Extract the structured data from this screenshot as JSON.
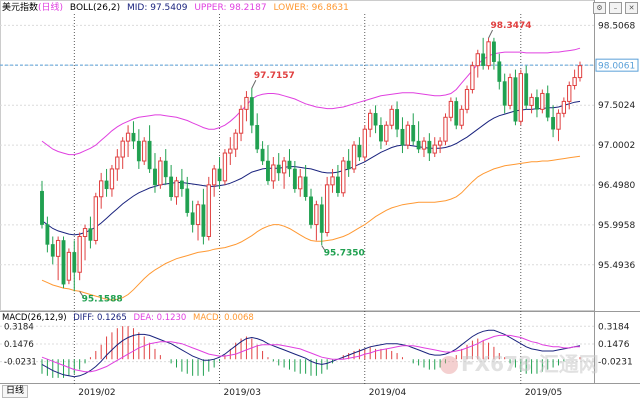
{
  "header": {
    "title": "美元指数",
    "period": "(日线)",
    "indicator": "BOLL(26,2)",
    "mid": "MID: 97.5409",
    "upper": "UPPER: 98.2187",
    "lower": "LOWER: 96.8631"
  },
  "macd_header": {
    "name": "MACD(26,12,9)",
    "diff": "DIFF: 0.1265",
    "dea": "DEA: 0.1230",
    "macd": "MACD: 0.0068"
  },
  "period_button": "日线",
  "watermark": "FX678 汇通网",
  "colors": {
    "up": "#e04040",
    "down": "#20a050",
    "mid": "#1a237e",
    "upper": "#e040e0",
    "lower": "#ff9933",
    "diff": "#1a237e",
    "dea": "#e040e0",
    "current": "#5aa0d8",
    "grid": "#dcdcdc",
    "vgrid": "#333333"
  },
  "chart_data": {
    "type": "candlestick",
    "price_axis": {
      "ticks": [
        98.5068,
        98.0046,
        97.5024,
        97.0002,
        96.498,
        95.9958,
        95.4936
      ],
      "tick_labels": [
        "98.5068",
        "98.0046",
        "97.5024",
        "97.0002",
        "96.4980",
        "95.9958",
        "95.4936"
      ],
      "ylim": [
        94.95,
        98.65
      ]
    },
    "macd_axis": {
      "ticks": [
        0.3184,
        0.1476,
        -0.0231
      ],
      "tick_labels": [
        "0.3184",
        "0.1476",
        "-0.0231"
      ],
      "ylim": [
        -0.22,
        0.36
      ]
    },
    "x_labels": [
      "2019/02",
      "2019/03",
      "2019/04",
      "2019/05"
    ],
    "x_label_index": [
      6,
      33,
      60,
      89
    ],
    "current_price": 98.0061,
    "current_price_label": "98.0061",
    "annotations": [
      {
        "index": 83,
        "price": 98.3474,
        "label": "98.3474",
        "pos": "high"
      },
      {
        "index": 39,
        "price": 97.7157,
        "label": "97.7157",
        "pos": "high"
      },
      {
        "index": 52,
        "price": 95.735,
        "label": "95.7350",
        "pos": "low"
      },
      {
        "index": 7,
        "price": 95.1588,
        "label": "95.1588",
        "pos": "low"
      }
    ],
    "candles": [
      [
        96.42,
        96.55,
        95.95,
        96.0
      ],
      [
        96.0,
        96.1,
        95.65,
        95.75
      ],
      [
        95.75,
        95.85,
        95.5,
        95.6
      ],
      [
        95.6,
        95.85,
        95.3,
        95.8
      ],
      [
        95.8,
        95.85,
        95.2,
        95.25
      ],
      [
        95.3,
        95.7,
        95.25,
        95.65
      ],
      [
        95.65,
        95.8,
        95.16,
        95.4
      ],
      [
        95.4,
        95.9,
        95.3,
        95.85
      ],
      [
        95.85,
        96.0,
        95.55,
        95.95
      ],
      [
        95.95,
        96.1,
        95.7,
        95.8
      ],
      [
        95.8,
        96.4,
        95.75,
        96.35
      ],
      [
        96.35,
        96.65,
        96.2,
        96.55
      ],
      [
        96.55,
        96.7,
        96.35,
        96.45
      ],
      [
        96.45,
        96.75,
        96.35,
        96.7
      ],
      [
        96.7,
        96.95,
        96.55,
        96.85
      ],
      [
        96.85,
        97.1,
        96.7,
        97.05
      ],
      [
        97.05,
        97.25,
        96.85,
        97.15
      ],
      [
        97.15,
        97.3,
        96.95,
        97.05
      ],
      [
        97.05,
        97.2,
        96.7,
        96.8
      ],
      [
        96.8,
        97.1,
        96.75,
        97.05
      ],
      [
        97.05,
        97.25,
        96.65,
        96.7
      ],
      [
        96.7,
        96.9,
        96.4,
        96.5
      ],
      [
        96.5,
        96.85,
        96.45,
        96.8
      ],
      [
        96.8,
        96.95,
        96.5,
        96.6
      ],
      [
        96.6,
        96.75,
        96.3,
        96.35
      ],
      [
        96.35,
        96.6,
        96.25,
        96.55
      ],
      [
        96.55,
        96.7,
        96.35,
        96.45
      ],
      [
        96.45,
        96.6,
        96.1,
        96.15
      ],
      [
        96.15,
        96.3,
        95.9,
        96.0
      ],
      [
        96.0,
        96.3,
        95.8,
        96.25
      ],
      [
        96.25,
        96.45,
        95.75,
        95.85
      ],
      [
        95.85,
        96.6,
        95.8,
        96.5
      ],
      [
        96.5,
        96.75,
        96.35,
        96.7
      ],
      [
        96.7,
        96.85,
        96.45,
        96.55
      ],
      [
        96.55,
        96.95,
        96.5,
        96.9
      ],
      [
        96.9,
        97.1,
        96.75,
        96.95
      ],
      [
        96.95,
        97.2,
        96.85,
        97.15
      ],
      [
        97.15,
        97.5,
        97.05,
        97.45
      ],
      [
        97.45,
        97.68,
        97.3,
        97.6
      ],
      [
        97.6,
        97.72,
        97.15,
        97.25
      ],
      [
        97.25,
        97.4,
        96.9,
        96.95
      ],
      [
        96.95,
        97.05,
        96.75,
        96.8
      ],
      [
        96.8,
        97.0,
        96.5,
        96.55
      ],
      [
        96.55,
        96.85,
        96.45,
        96.75
      ],
      [
        96.75,
        96.9,
        96.55,
        96.65
      ],
      [
        96.65,
        96.85,
        96.45,
        96.8
      ],
      [
        96.8,
        96.95,
        96.6,
        96.7
      ],
      [
        96.7,
        96.8,
        96.4,
        96.45
      ],
      [
        96.45,
        96.7,
        96.35,
        96.6
      ],
      [
        96.6,
        96.75,
        96.3,
        96.35
      ],
      [
        96.35,
        96.45,
        95.95,
        96.0
      ],
      [
        96.0,
        96.3,
        95.8,
        96.25
      ],
      [
        96.25,
        96.35,
        95.74,
        95.9
      ],
      [
        95.9,
        96.6,
        95.85,
        96.5
      ],
      [
        96.5,
        96.7,
        96.4,
        96.6
      ],
      [
        96.6,
        96.75,
        96.35,
        96.4
      ],
      [
        96.4,
        96.85,
        96.35,
        96.8
      ],
      [
        96.8,
        96.95,
        96.6,
        96.7
      ],
      [
        96.7,
        97.05,
        96.65,
        97.0
      ],
      [
        97.0,
        97.1,
        96.8,
        96.85
      ],
      [
        96.85,
        97.25,
        96.8,
        97.2
      ],
      [
        97.2,
        97.45,
        97.1,
        97.4
      ],
      [
        97.4,
        97.5,
        97.15,
        97.25
      ],
      [
        97.25,
        97.35,
        96.95,
        97.05
      ],
      [
        97.05,
        97.3,
        97.0,
        97.25
      ],
      [
        97.25,
        97.5,
        97.2,
        97.45
      ],
      [
        97.45,
        97.55,
        97.1,
        97.2
      ],
      [
        97.2,
        97.35,
        96.9,
        97.0
      ],
      [
        97.0,
        97.3,
        96.95,
        97.25
      ],
      [
        97.25,
        97.4,
        97.0,
        97.05
      ],
      [
        97.05,
        97.3,
        96.9,
        96.95
      ],
      [
        96.95,
        97.1,
        96.85,
        97.05
      ],
      [
        97.05,
        97.15,
        96.8,
        96.9
      ],
      [
        96.9,
        97.1,
        96.85,
        97.0
      ],
      [
        97.0,
        97.1,
        96.9,
        97.05
      ],
      [
        97.05,
        97.4,
        97.0,
        97.35
      ],
      [
        97.35,
        97.6,
        97.3,
        97.55
      ],
      [
        97.55,
        97.6,
        97.2,
        97.25
      ],
      [
        97.25,
        97.5,
        97.2,
        97.45
      ],
      [
        97.45,
        97.75,
        97.4,
        97.7
      ],
      [
        97.7,
        98.05,
        97.65,
        98.0
      ],
      [
        98.0,
        98.2,
        97.85,
        98.15
      ],
      [
        98.15,
        98.35,
        97.95,
        98.0
      ],
      [
        98.0,
        98.35,
        97.95,
        98.3
      ],
      [
        98.3,
        98.35,
        97.95,
        98.05
      ],
      [
        98.05,
        98.15,
        97.7,
        97.8
      ],
      [
        97.8,
        97.9,
        97.4,
        97.5
      ],
      [
        97.5,
        97.9,
        97.45,
        97.85
      ],
      [
        97.85,
        97.95,
        97.25,
        97.3
      ],
      [
        97.3,
        97.95,
        97.25,
        97.9
      ],
      [
        97.9,
        98.0,
        97.45,
        97.5
      ],
      [
        97.5,
        97.65,
        97.4,
        97.6
      ],
      [
        97.6,
        97.7,
        97.35,
        97.45
      ],
      [
        97.45,
        97.7,
        97.4,
        97.65
      ],
      [
        97.65,
        97.75,
        97.3,
        97.35
      ],
      [
        97.35,
        97.5,
        97.1,
        97.2
      ],
      [
        97.2,
        97.45,
        97.05,
        97.4
      ],
      [
        97.4,
        97.6,
        97.35,
        97.55
      ],
      [
        97.55,
        97.8,
        97.45,
        97.75
      ],
      [
        97.75,
        97.95,
        97.7,
        97.85
      ],
      [
        97.85,
        98.05,
        97.8,
        98.0
      ]
    ],
    "series": [
      {
        "name": "MID",
        "color": "#1a237e",
        "values": [
          96.05,
          96.0,
          95.95,
          95.92,
          95.9,
          95.88,
          95.87,
          95.88,
          95.9,
          95.93,
          95.97,
          96.02,
          96.08,
          96.14,
          96.2,
          96.26,
          96.31,
          96.36,
          96.4,
          96.43,
          96.46,
          96.48,
          96.5,
          96.51,
          96.52,
          96.53,
          96.53,
          96.52,
          96.51,
          96.5,
          96.49,
          96.48,
          96.48,
          96.49,
          96.5,
          96.52,
          96.55,
          96.58,
          96.62,
          96.66,
          96.68,
          96.7,
          96.71,
          96.71,
          96.71,
          96.72,
          96.73,
          96.73,
          96.72,
          96.71,
          96.7,
          96.68,
          96.66,
          96.65,
          96.65,
          96.66,
          96.68,
          96.7,
          96.73,
          96.76,
          96.79,
          96.83,
          96.87,
          96.91,
          96.94,
          96.97,
          96.99,
          97.0,
          97.0,
          96.99,
          96.98,
          96.97,
          96.96,
          96.96,
          96.96,
          96.97,
          96.99,
          97.02,
          97.06,
          97.1,
          97.15,
          97.2,
          97.25,
          97.3,
          97.34,
          97.37,
          97.39,
          97.41,
          97.43,
          97.44,
          97.45,
          97.45,
          97.46,
          97.46,
          97.47,
          97.47,
          97.48,
          97.5,
          97.52,
          97.54,
          97.55
        ]
      },
      {
        "name": "UPPER",
        "color": "#e040e0",
        "values": [
          97.05,
          97.0,
          96.95,
          96.92,
          96.9,
          96.88,
          96.88,
          96.9,
          96.93,
          96.96,
          97.0,
          97.06,
          97.12,
          97.18,
          97.23,
          97.27,
          97.3,
          97.33,
          97.35,
          97.36,
          97.37,
          97.38,
          97.38,
          97.37,
          97.36,
          97.35,
          97.33,
          97.31,
          97.28,
          97.25,
          97.22,
          97.2,
          97.2,
          97.22,
          97.25,
          97.3,
          97.36,
          97.43,
          97.5,
          97.58,
          97.62,
          97.64,
          97.65,
          97.65,
          97.64,
          97.62,
          97.6,
          97.58,
          97.55,
          97.52,
          97.5,
          97.48,
          97.47,
          97.46,
          97.46,
          97.47,
          97.48,
          97.5,
          97.52,
          97.54,
          97.56,
          97.58,
          97.6,
          97.62,
          97.63,
          97.64,
          97.65,
          97.66,
          97.66,
          97.66,
          97.65,
          97.64,
          97.63,
          97.62,
          97.62,
          97.63,
          97.65,
          97.7,
          97.78,
          97.86,
          97.94,
          98.02,
          98.08,
          98.12,
          98.15,
          98.16,
          98.17,
          98.17,
          98.17,
          98.17,
          98.16,
          98.16,
          98.16,
          98.16,
          98.16,
          98.17,
          98.17,
          98.18,
          98.19,
          98.2,
          98.22
        ]
      },
      {
        "name": "LOWER",
        "color": "#ff9933",
        "values": [
          95.3,
          95.27,
          95.24,
          95.22,
          95.2,
          95.19,
          95.17,
          95.16,
          95.14,
          95.12,
          95.1,
          95.08,
          95.06,
          95.05,
          95.06,
          95.08,
          95.12,
          95.18,
          95.25,
          95.32,
          95.38,
          95.43,
          95.47,
          95.51,
          95.54,
          95.57,
          95.59,
          95.61,
          95.63,
          95.65,
          95.66,
          95.67,
          95.69,
          95.7,
          95.71,
          95.73,
          95.75,
          95.78,
          95.82,
          95.86,
          95.91,
          95.95,
          95.98,
          96.0,
          96.0,
          95.98,
          95.95,
          95.91,
          95.87,
          95.83,
          95.8,
          95.79,
          95.79,
          95.8,
          95.81,
          95.83,
          95.85,
          95.88,
          95.92,
          95.96,
          96.0,
          96.05,
          96.1,
          96.14,
          96.18,
          96.21,
          96.23,
          96.25,
          96.26,
          96.27,
          96.28,
          96.28,
          96.28,
          96.28,
          96.29,
          96.3,
          96.32,
          96.35,
          96.4,
          96.47,
          96.54,
          96.6,
          96.64,
          96.67,
          96.7,
          96.72,
          96.74,
          96.75,
          96.76,
          96.77,
          96.78,
          96.79,
          96.79,
          96.8,
          96.8,
          96.81,
          96.82,
          96.83,
          96.84,
          96.85,
          96.86
        ]
      },
      {
        "name": "DIFF",
        "color": "#1a237e",
        "values": [
          -0.05,
          -0.08,
          -0.11,
          -0.13,
          -0.15,
          -0.16,
          -0.17,
          -0.16,
          -0.14,
          -0.11,
          -0.07,
          -0.02,
          0.04,
          0.09,
          0.14,
          0.18,
          0.21,
          0.23,
          0.24,
          0.24,
          0.23,
          0.21,
          0.19,
          0.17,
          0.15,
          0.12,
          0.09,
          0.06,
          0.03,
          0.01,
          -0.01,
          -0.01,
          0.0,
          0.02,
          0.05,
          0.09,
          0.13,
          0.17,
          0.2,
          0.21,
          0.2,
          0.18,
          0.15,
          0.13,
          0.11,
          0.09,
          0.07,
          0.05,
          0.03,
          0.01,
          -0.02,
          -0.04,
          -0.05,
          -0.04,
          -0.02,
          0.0,
          0.02,
          0.04,
          0.06,
          0.08,
          0.1,
          0.12,
          0.13,
          0.14,
          0.15,
          0.15,
          0.15,
          0.14,
          0.13,
          0.11,
          0.09,
          0.07,
          0.05,
          0.04,
          0.04,
          0.05,
          0.07,
          0.1,
          0.14,
          0.18,
          0.22,
          0.25,
          0.27,
          0.28,
          0.28,
          0.26,
          0.24,
          0.21,
          0.18,
          0.15,
          0.12,
          0.1,
          0.09,
          0.08,
          0.08,
          0.08,
          0.09,
          0.1,
          0.11,
          0.12,
          0.13
        ]
      },
      {
        "name": "DEA",
        "color": "#e040e0",
        "values": [
          0.02,
          0.0,
          -0.02,
          -0.04,
          -0.06,
          -0.08,
          -0.1,
          -0.11,
          -0.12,
          -0.12,
          -0.11,
          -0.09,
          -0.07,
          -0.04,
          -0.01,
          0.02,
          0.05,
          0.08,
          0.11,
          0.13,
          0.15,
          0.16,
          0.17,
          0.17,
          0.17,
          0.16,
          0.15,
          0.13,
          0.11,
          0.09,
          0.07,
          0.05,
          0.04,
          0.03,
          0.03,
          0.04,
          0.05,
          0.07,
          0.09,
          0.11,
          0.13,
          0.14,
          0.14,
          0.14,
          0.14,
          0.13,
          0.12,
          0.11,
          0.1,
          0.08,
          0.06,
          0.04,
          0.02,
          0.01,
          0.0,
          0.0,
          0.0,
          0.01,
          0.02,
          0.03,
          0.05,
          0.06,
          0.08,
          0.09,
          0.1,
          0.11,
          0.12,
          0.13,
          0.13,
          0.13,
          0.12,
          0.11,
          0.1,
          0.09,
          0.08,
          0.07,
          0.07,
          0.08,
          0.09,
          0.11,
          0.13,
          0.15,
          0.18,
          0.2,
          0.22,
          0.23,
          0.23,
          0.23,
          0.22,
          0.21,
          0.19,
          0.17,
          0.16,
          0.14,
          0.13,
          0.12,
          0.12,
          0.11,
          0.11,
          0.12,
          0.12
        ]
      }
    ]
  }
}
